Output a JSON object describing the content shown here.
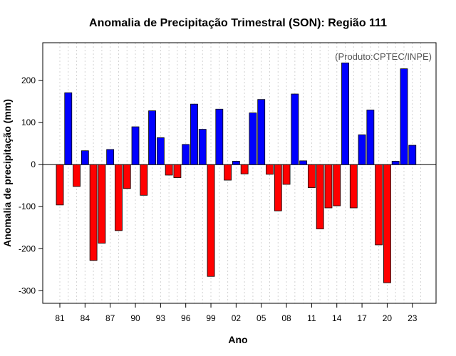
{
  "chart_data": {
    "type": "bar",
    "title": "Anomalia de Precipitação Trimestral (SON): Região 111",
    "xlabel": "Ano",
    "ylabel": "Anomalia de precipitação (mm)",
    "credit": "(Produto:CPTEC/INPE)",
    "ylim": [
      -330,
      290
    ],
    "yticks": [
      -300,
      -200,
      -100,
      0,
      100,
      200
    ],
    "ytick_labels": [
      "-300",
      "-200",
      "-100",
      "0",
      "100",
      "200"
    ],
    "xtick_labels": [
      "81",
      "84",
      "87",
      "90",
      "93",
      "96",
      "99",
      "02",
      "05",
      "08",
      "11",
      "14",
      "17",
      "20",
      "23"
    ],
    "xtick_years": [
      1981,
      1984,
      1987,
      1990,
      1993,
      1996,
      1999,
      2002,
      2005,
      2008,
      2011,
      2014,
      2017,
      2020,
      2023
    ],
    "categories": [
      1981,
      1982,
      1983,
      1984,
      1985,
      1986,
      1987,
      1988,
      1989,
      1990,
      1991,
      1992,
      1993,
      1994,
      1995,
      1996,
      1997,
      1998,
      1999,
      2000,
      2001,
      2002,
      2003,
      2004,
      2005,
      2006,
      2007,
      2008,
      2009,
      2010,
      2011,
      2012,
      2013,
      2014,
      2015,
      2016,
      2017,
      2018,
      2019,
      2020,
      2021,
      2022,
      2023,
      2024
    ],
    "values": [
      -96,
      171,
      -52,
      33,
      -228,
      -187,
      36,
      -157,
      -57,
      90,
      -73,
      128,
      64,
      -25,
      -31,
      48,
      144,
      84,
      -266,
      132,
      -37,
      8,
      -22,
      123,
      155,
      -23,
      -110,
      -47,
      168,
      9,
      -55,
      -153,
      -103,
      -98,
      242,
      -103,
      71,
      130,
      -191,
      -281,
      8,
      228,
      46,
      null
    ],
    "colors": {
      "positive": "#0000ff",
      "negative": "#ff0000",
      "grid": "#d3d3d3",
      "zero_line": "#000000"
    }
  }
}
